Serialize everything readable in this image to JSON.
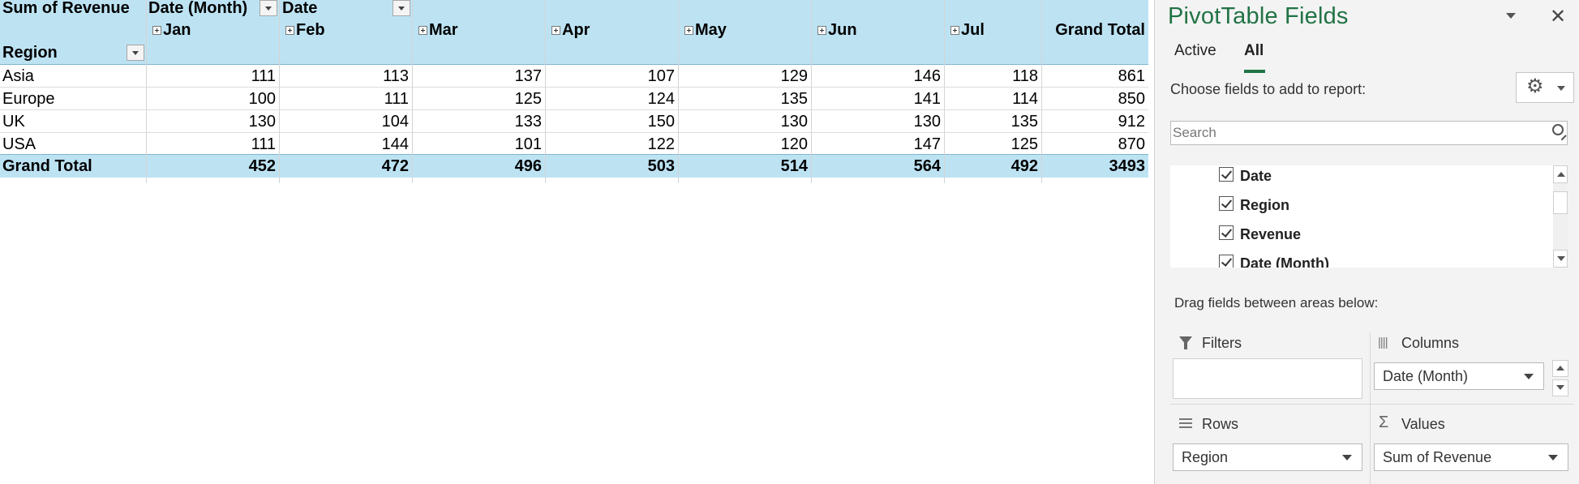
{
  "pivot": {
    "value_field_label": "Sum of Revenue",
    "column_field_labels": [
      "Date (Month)",
      "Date"
    ],
    "row_field_label": "Region",
    "months": [
      "Jan",
      "Feb",
      "Mar",
      "Apr",
      "May",
      "Jun",
      "Jul"
    ],
    "grand_total_label": "Grand Total",
    "rows": [
      {
        "region": "Asia",
        "values": [
          "111",
          "113",
          "137",
          "107",
          "129",
          "146",
          "118"
        ],
        "total": "861"
      },
      {
        "region": "Europe",
        "values": [
          "100",
          "111",
          "125",
          "124",
          "135",
          "141",
          "114"
        ],
        "total": "850"
      },
      {
        "region": "UK",
        "values": [
          "130",
          "104",
          "133",
          "150",
          "130",
          "130",
          "135"
        ],
        "total": "912"
      },
      {
        "region": "USA",
        "values": [
          "111",
          "144",
          "101",
          "122",
          "120",
          "147",
          "125"
        ],
        "total": "870"
      }
    ],
    "grand_totals": [
      "452",
      "472",
      "496",
      "503",
      "514",
      "564",
      "492"
    ],
    "grand_total_all": "3493"
  },
  "pane": {
    "title": "PivotTable Fields",
    "tabs": [
      "Active",
      "All"
    ],
    "active_tab": "All",
    "choose_label": "Choose fields to add to report:",
    "search_placeholder": "Search",
    "fields": [
      {
        "name": "Date",
        "checked": true
      },
      {
        "name": "Region",
        "checked": true
      },
      {
        "name": "Revenue",
        "checked": true
      },
      {
        "name": "Date (Month)",
        "checked": true
      }
    ],
    "drag_label": "Drag fields between areas below:",
    "areas": {
      "filters": {
        "label": "Filters",
        "items": []
      },
      "columns": {
        "label": "Columns",
        "items": [
          "Date (Month)"
        ]
      },
      "rows": {
        "label": "Rows",
        "items": [
          "Region"
        ]
      },
      "values": {
        "label": "Values",
        "items": [
          "Sum of Revenue"
        ]
      }
    }
  },
  "colors": {
    "header_fill": "#bde3f3",
    "accent_green": "#217346"
  }
}
